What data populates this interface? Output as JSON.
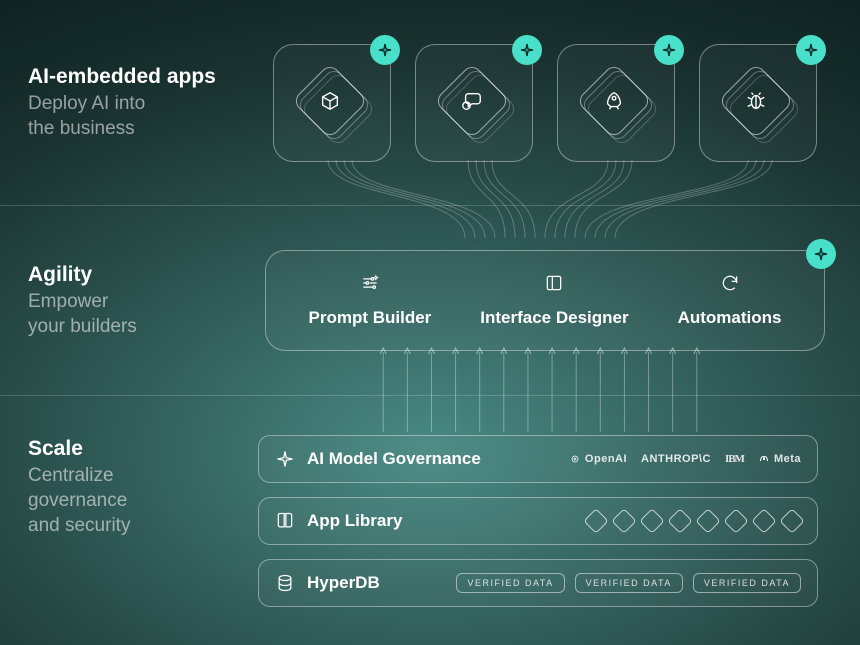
{
  "colors": {
    "accent": "#48e0c8",
    "border": "rgba(255,255,255,0.4)",
    "stroke": "rgba(255,255,255,0.6)",
    "text": "#ffffff",
    "muted": "rgba(255,255,255,0.55)"
  },
  "row1": {
    "title": "AI-embedded apps",
    "subtitle": "Deploy AI into\nthe business",
    "apps": [
      {
        "icon": "cube"
      },
      {
        "icon": "chat"
      },
      {
        "icon": "rocket"
      },
      {
        "icon": "bug"
      }
    ]
  },
  "row2": {
    "title": "Agility",
    "subtitle": "Empower\nyour builders",
    "items": [
      {
        "label": "Prompt Builder",
        "icon": "sliders"
      },
      {
        "label": "Interface Designer",
        "icon": "layout"
      },
      {
        "label": "Automations",
        "icon": "refresh"
      }
    ]
  },
  "row3": {
    "title": "Scale",
    "subtitle": "Centralize\ngovernance\nand security",
    "bars": {
      "governance": {
        "title": "AI Model Governance",
        "providers": [
          "OpenAI",
          "ANTHROP\\C",
          "IBM",
          "Meta"
        ]
      },
      "library": {
        "title": "App Library",
        "diamond_count": 8
      },
      "hyperdb": {
        "title": "HyperDB",
        "pill_text": "VERIFIED DATA",
        "pill_count": 3
      }
    }
  },
  "connectors": {
    "curve_count": 16,
    "arrow_count": 14
  }
}
